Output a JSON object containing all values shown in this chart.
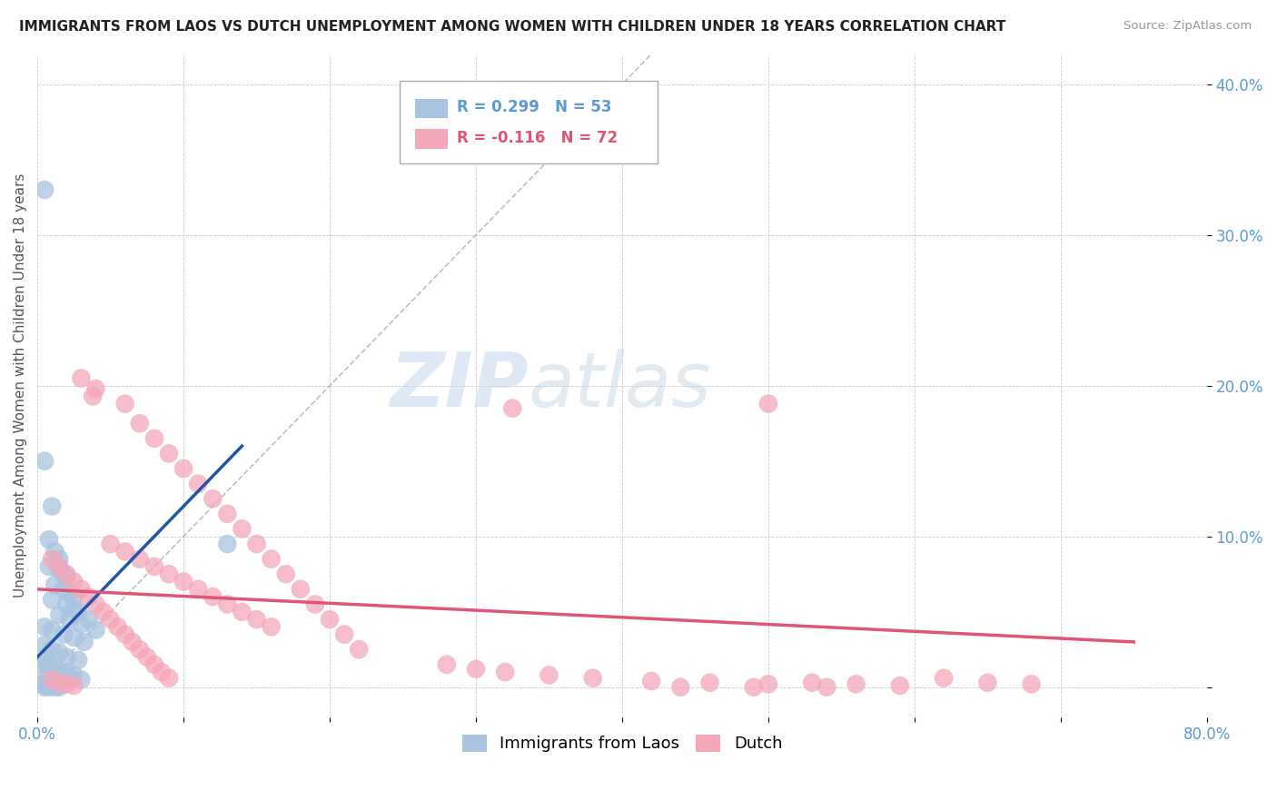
{
  "title": "IMMIGRANTS FROM LAOS VS DUTCH UNEMPLOYMENT AMONG WOMEN WITH CHILDREN UNDER 18 YEARS CORRELATION CHART",
  "source": "Source: ZipAtlas.com",
  "ylabel": "Unemployment Among Women with Children Under 18 years",
  "xlim": [
    0.0,
    0.8
  ],
  "ylim": [
    -0.02,
    0.42
  ],
  "xticks": [
    0.0,
    0.1,
    0.2,
    0.3,
    0.4,
    0.5,
    0.6,
    0.7,
    0.8
  ],
  "xticklabels": [
    "0.0%",
    "",
    "",
    "",
    "",
    "",
    "",
    "",
    "80.0%"
  ],
  "yticks": [
    0.0,
    0.1,
    0.2,
    0.3,
    0.4
  ],
  "yticklabels": [
    "",
    "10.0%",
    "20.0%",
    "30.0%",
    "40.0%"
  ],
  "legend_r1": "R = 0.299",
  "legend_n1": "N = 53",
  "legend_r2": "R = -0.116",
  "legend_n2": "N = 72",
  "blue_color": "#a8c4e0",
  "pink_color": "#f4a7b9",
  "blue_line_color": "#2255aa",
  "pink_line_color": "#e05575",
  "ref_line_color": "#b0b0b0",
  "watermark_zip": "ZIP",
  "watermark_atlas": "atlas",
  "background_color": "#ffffff",
  "blue_points": [
    [
      0.005,
      0.33
    ],
    [
      0.005,
      0.15
    ],
    [
      0.01,
      0.12
    ],
    [
      0.008,
      0.098
    ],
    [
      0.012,
      0.09
    ],
    [
      0.015,
      0.085
    ],
    [
      0.008,
      0.08
    ],
    [
      0.015,
      0.078
    ],
    [
      0.018,
      0.075
    ],
    [
      0.02,
      0.073
    ],
    [
      0.012,
      0.068
    ],
    [
      0.018,
      0.065
    ],
    [
      0.022,
      0.062
    ],
    [
      0.025,
      0.06
    ],
    [
      0.01,
      0.058
    ],
    [
      0.02,
      0.055
    ],
    [
      0.025,
      0.052
    ],
    [
      0.028,
      0.05
    ],
    [
      0.015,
      0.048
    ],
    [
      0.022,
      0.045
    ],
    [
      0.03,
      0.042
    ],
    [
      0.005,
      0.04
    ],
    [
      0.01,
      0.038
    ],
    [
      0.018,
      0.035
    ],
    [
      0.025,
      0.033
    ],
    [
      0.032,
      0.03
    ],
    [
      0.005,
      0.028
    ],
    [
      0.01,
      0.025
    ],
    [
      0.015,
      0.023
    ],
    [
      0.02,
      0.02
    ],
    [
      0.028,
      0.018
    ],
    [
      0.005,
      0.015
    ],
    [
      0.008,
      0.013
    ],
    [
      0.012,
      0.01
    ],
    [
      0.018,
      0.008
    ],
    [
      0.022,
      0.006
    ],
    [
      0.003,
      0.005
    ],
    [
      0.006,
      0.003
    ],
    [
      0.01,
      0.002
    ],
    [
      0.003,
      0.002
    ],
    [
      0.005,
      0.0
    ],
    [
      0.008,
      0.0
    ],
    [
      0.012,
      0.0
    ],
    [
      0.015,
      0.0
    ],
    [
      0.005,
      0.018
    ],
    [
      0.008,
      0.015
    ],
    [
      0.012,
      0.012
    ],
    [
      0.02,
      0.01
    ],
    [
      0.025,
      0.008
    ],
    [
      0.03,
      0.005
    ],
    [
      0.13,
      0.095
    ],
    [
      0.035,
      0.045
    ],
    [
      0.04,
      0.038
    ]
  ],
  "pink_points": [
    [
      0.03,
      0.205
    ],
    [
      0.04,
      0.198
    ],
    [
      0.038,
      0.193
    ],
    [
      0.06,
      0.188
    ],
    [
      0.5,
      0.188
    ],
    [
      0.325,
      0.185
    ],
    [
      0.07,
      0.175
    ],
    [
      0.08,
      0.165
    ],
    [
      0.09,
      0.155
    ],
    [
      0.1,
      0.145
    ],
    [
      0.11,
      0.135
    ],
    [
      0.12,
      0.125
    ],
    [
      0.13,
      0.115
    ],
    [
      0.14,
      0.105
    ],
    [
      0.15,
      0.095
    ],
    [
      0.16,
      0.085
    ],
    [
      0.17,
      0.075
    ],
    [
      0.18,
      0.065
    ],
    [
      0.19,
      0.055
    ],
    [
      0.2,
      0.045
    ],
    [
      0.21,
      0.035
    ],
    [
      0.22,
      0.025
    ],
    [
      0.05,
      0.095
    ],
    [
      0.06,
      0.09
    ],
    [
      0.07,
      0.085
    ],
    [
      0.08,
      0.08
    ],
    [
      0.09,
      0.075
    ],
    [
      0.1,
      0.07
    ],
    [
      0.11,
      0.065
    ],
    [
      0.12,
      0.06
    ],
    [
      0.13,
      0.055
    ],
    [
      0.14,
      0.05
    ],
    [
      0.15,
      0.045
    ],
    [
      0.16,
      0.04
    ],
    [
      0.01,
      0.085
    ],
    [
      0.015,
      0.08
    ],
    [
      0.02,
      0.075
    ],
    [
      0.025,
      0.07
    ],
    [
      0.03,
      0.065
    ],
    [
      0.035,
      0.06
    ],
    [
      0.04,
      0.055
    ],
    [
      0.045,
      0.05
    ],
    [
      0.05,
      0.045
    ],
    [
      0.055,
      0.04
    ],
    [
      0.06,
      0.035
    ],
    [
      0.065,
      0.03
    ],
    [
      0.07,
      0.025
    ],
    [
      0.075,
      0.02
    ],
    [
      0.08,
      0.015
    ],
    [
      0.085,
      0.01
    ],
    [
      0.09,
      0.006
    ],
    [
      0.01,
      0.005
    ],
    [
      0.015,
      0.003
    ],
    [
      0.02,
      0.002
    ],
    [
      0.025,
      0.001
    ],
    [
      0.28,
      0.015
    ],
    [
      0.3,
      0.012
    ],
    [
      0.32,
      0.01
    ],
    [
      0.35,
      0.008
    ],
    [
      0.38,
      0.006
    ],
    [
      0.42,
      0.004
    ],
    [
      0.46,
      0.003
    ],
    [
      0.5,
      0.002
    ],
    [
      0.53,
      0.003
    ],
    [
      0.56,
      0.002
    ],
    [
      0.59,
      0.001
    ],
    [
      0.62,
      0.006
    ],
    [
      0.65,
      0.003
    ],
    [
      0.68,
      0.002
    ],
    [
      0.49,
      0.0
    ],
    [
      0.54,
      0.0
    ],
    [
      0.44,
      0.0
    ]
  ]
}
